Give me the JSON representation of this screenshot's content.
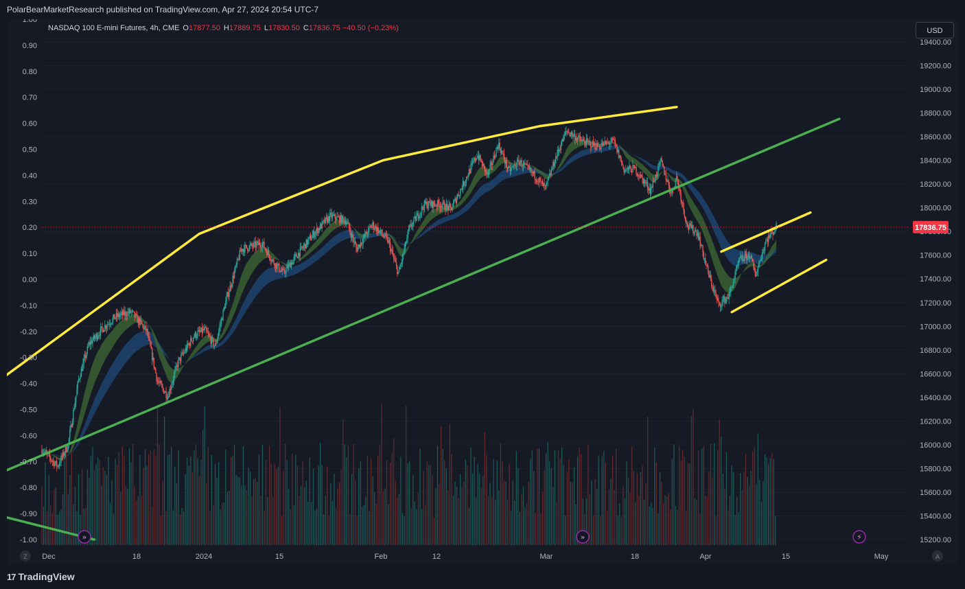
{
  "header": {
    "publisher_line": "PolarBearMarketResearch published on TradingView.com, Apr 27, 2024 20:54 UTC-7"
  },
  "legend": {
    "symbol": "NASDAQ 100 E-mini Futures, 4h, CME",
    "open_label": "O",
    "open": "17877.50",
    "high_label": "H",
    "high": "17889.75",
    "low_label": "L",
    "low": "17830.50",
    "close_label": "C",
    "close": "17836.75",
    "change": "−40.50 (−0.23%)"
  },
  "currency_button": "USD",
  "footer": {
    "brand": "TradingView",
    "left_corner": "Z",
    "right_corner": "A"
  },
  "chart_data": {
    "type": "candlestick",
    "instrument": "NASDAQ 100 E-mini Futures",
    "interval": "4h",
    "exchange": "CME",
    "last_price": 17836.75,
    "last_price_label": "17836.75",
    "right_axis": {
      "ticks": [
        "19400.00",
        "19200.00",
        "19000.00",
        "18800.00",
        "18600.00",
        "18400.00",
        "18200.00",
        "18000.00",
        "17800.00",
        "17600.00",
        "17400.00",
        "17200.00",
        "17000.00",
        "16800.00",
        "16600.00",
        "16400.00",
        "16200.00",
        "16000.00",
        "15800.00",
        "15600.00",
        "15400.00",
        "15200.00"
      ],
      "range": [
        15170,
        19420
      ]
    },
    "left_axis": {
      "ticks": [
        "1.00",
        "0.90",
        "0.80",
        "0.70",
        "0.60",
        "0.50",
        "0.40",
        "0.30",
        "0.20",
        "0.10",
        "0.00",
        "-0.10",
        "-0.20",
        "-0.30",
        "-0.40",
        "-0.50",
        "-0.60",
        "-0.70",
        "-0.80",
        "-0.90",
        "-1.00"
      ],
      "range": [
        -1.0,
        1.0
      ]
    },
    "x_axis": {
      "labels": [
        "Dec",
        "18",
        "2024",
        "15",
        "Feb",
        "12",
        "Mar",
        "18",
        "Apr",
        "15",
        "May"
      ],
      "range_days": [
        0,
        160
      ]
    },
    "price_path": [
      [
        0,
        15960
      ],
      [
        3,
        15820
      ],
      [
        5,
        16000
      ],
      [
        7,
        16550
      ],
      [
        9,
        16850
      ],
      [
        12,
        17000
      ],
      [
        14,
        17080
      ],
      [
        17,
        17120
      ],
      [
        20,
        16960
      ],
      [
        22,
        16540
      ],
      [
        24,
        16410
      ],
      [
        26,
        16700
      ],
      [
        29,
        16920
      ],
      [
        31,
        16970
      ],
      [
        33,
        16830
      ],
      [
        35,
        17200
      ],
      [
        38,
        17650
      ],
      [
        42,
        17700
      ],
      [
        44,
        17550
      ],
      [
        46,
        17450
      ],
      [
        49,
        17620
      ],
      [
        52,
        17790
      ],
      [
        55,
        17930
      ],
      [
        58,
        17890
      ],
      [
        60,
        17650
      ],
      [
        63,
        17860
      ],
      [
        66,
        17720
      ],
      [
        68,
        17440
      ],
      [
        70,
        17820
      ],
      [
        73,
        18030
      ],
      [
        76,
        18030
      ],
      [
        78,
        17990
      ],
      [
        80,
        18170
      ],
      [
        83,
        18450
      ],
      [
        85,
        18270
      ],
      [
        87,
        18540
      ],
      [
        89,
        18310
      ],
      [
        91,
        18390
      ],
      [
        94,
        18270
      ],
      [
        96,
        18160
      ],
      [
        98,
        18430
      ],
      [
        100,
        18650
      ],
      [
        103,
        18560
      ],
      [
        106,
        18520
      ],
      [
        109,
        18560
      ],
      [
        111,
        18320
      ],
      [
        113,
        18330
      ],
      [
        116,
        18150
      ],
      [
        118,
        18390
      ],
      [
        120,
        18120
      ],
      [
        121,
        18260
      ],
      [
        123,
        17850
      ],
      [
        125,
        17790
      ],
      [
        127,
        17450
      ],
      [
        129,
        17180
      ],
      [
        131,
        17260
      ],
      [
        133,
        17560
      ],
      [
        135,
        17600
      ],
      [
        136,
        17430
      ],
      [
        138,
        17720
      ],
      [
        140,
        17836.75
      ]
    ],
    "volume_scale_max": 1,
    "trendlines": [
      {
        "name": "upper-arc",
        "color": "#ffeb3b",
        "points": [
          [
            -7,
            16580
          ],
          [
            30,
            17780
          ],
          [
            65,
            18400
          ],
          [
            95,
            18690
          ],
          [
            121,
            18850
          ]
        ]
      },
      {
        "name": "lower-channel",
        "color": "#4caf50",
        "points": [
          [
            -7,
            15780
          ],
          [
            152,
            18750
          ]
        ]
      },
      {
        "name": "lower-channel-early",
        "color": "#4caf50",
        "points": [
          [
            -7,
            15390
          ],
          [
            10,
            15200
          ]
        ]
      },
      {
        "name": "flag-upper",
        "color": "#ffeb3b",
        "points": [
          [
            129.5,
            17630
          ],
          [
            146.5,
            17960
          ]
        ]
      },
      {
        "name": "flag-lower",
        "color": "#ffeb3b",
        "points": [
          [
            131.5,
            17120
          ],
          [
            149.5,
            17560
          ]
        ]
      }
    ],
    "colors": {
      "up": "#26a69a",
      "down": "#ef5350",
      "ribbon_up": "#3d6b35",
      "ribbon_down": "#7d2a2e",
      "slow_ribbon": "#1f4a78",
      "last_price": "#f23645"
    },
    "markers": [
      "arrow-marker",
      "arrow-marker",
      "lightning-marker"
    ]
  }
}
